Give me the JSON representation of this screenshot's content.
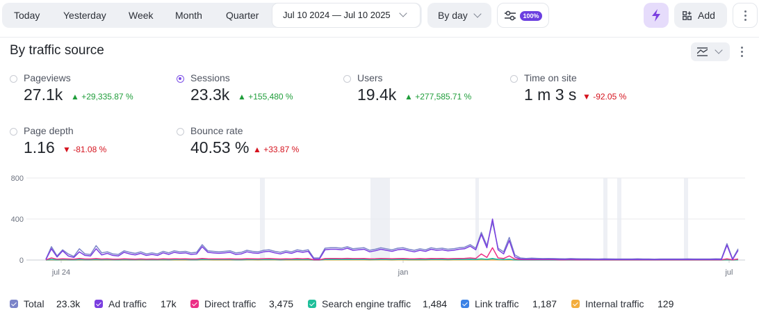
{
  "toolbar": {
    "periods": [
      "Today",
      "Yesterday",
      "Week",
      "Month",
      "Quarter"
    ],
    "date_range": "Jul 10 2024 — Jul 10 2025",
    "grouping": "By day",
    "sampling_badge": "100%",
    "add_label": "Add",
    "icons": {
      "sampling": "sliders-icon",
      "lightning": "lightning-icon",
      "add": "widgets-icon",
      "more": "kebab-icon"
    }
  },
  "report": {
    "title": "By traffic source",
    "chart_settings_icon": "chart-settings-icon"
  },
  "metrics": [
    {
      "label": "Pageviews",
      "value": "27.1k",
      "delta": "▲ +29,335.87 %",
      "trend": "up",
      "selected": false
    },
    {
      "label": "Sessions",
      "value": "23.3k",
      "delta": "▲ +155,480 %",
      "trend": "up",
      "selected": true
    },
    {
      "label": "Users",
      "value": "19.4k",
      "delta": "▲ +277,585.71 %",
      "trend": "up",
      "selected": false
    },
    {
      "label": "Time on site",
      "value": "1 m 3 s",
      "delta": "▼ -92.05 %",
      "trend": "down",
      "selected": false
    },
    {
      "label": "Page depth",
      "value": "1.16",
      "delta": "▼ -81.08 %",
      "trend": "down",
      "selected": false
    },
    {
      "label": "Bounce rate",
      "value": "40.53 %",
      "delta": "▲ +33.87 %",
      "trend": "down",
      "selected": false
    }
  ],
  "legend": [
    {
      "name": "Total",
      "value": "23.3k",
      "color": "#7b84c9"
    },
    {
      "name": "Ad traffic",
      "value": "17k",
      "color": "#7a3ee0"
    },
    {
      "name": "Direct traffic",
      "value": "3,475",
      "color": "#ec2f86"
    },
    {
      "name": "Search engine traffic",
      "value": "1,484",
      "color": "#1fbf9a"
    },
    {
      "name": "Link traffic",
      "value": "1,187",
      "color": "#3b82e6"
    },
    {
      "name": "Internal traffic",
      "value": "129",
      "color": "#f3ad3d"
    }
  ],
  "chart_data": {
    "type": "line",
    "y_ticks": [
      800,
      400,
      0
    ],
    "ylim": [
      0,
      800
    ],
    "x_ticks": [
      "jul 24",
      "jan",
      "jul"
    ],
    "grid": true,
    "series": [
      {
        "name": "Total",
        "color": "#7b84c9",
        "values": [
          8,
          130,
          40,
          100,
          60,
          35,
          110,
          60,
          55,
          140,
          70,
          80,
          60,
          55,
          90,
          75,
          65,
          80,
          60,
          70,
          60,
          85,
          70,
          90,
          80,
          85,
          70,
          75,
          150,
          90,
          85,
          80,
          85,
          90,
          70,
          75,
          95,
          85,
          80,
          95,
          100,
          85,
          75,
          90,
          80,
          100,
          90,
          100,
          20,
          20,
          115,
          120,
          120,
          115,
          130,
          110,
          115,
          120,
          95,
          105,
          120,
          110,
          100,
          115,
          120,
          105,
          95,
          110,
          100,
          120,
          110,
          115,
          105,
          110,
          120,
          125,
          150,
          115,
          270,
          140,
          370,
          115,
          80,
          220,
          50,
          20,
          15,
          18,
          16,
          14,
          15,
          14,
          13,
          12,
          14,
          13,
          12,
          12,
          11,
          10,
          12,
          11,
          10,
          10,
          10,
          10,
          12,
          10,
          10,
          9,
          10,
          10,
          10,
          10,
          10,
          11,
          10,
          10,
          10,
          10,
          12,
          11,
          160,
          10,
          110
        ]
      },
      {
        "name": "Ad traffic",
        "color": "#7a3ee0",
        "values": [
          5,
          110,
          30,
          90,
          40,
          25,
          80,
          45,
          40,
          110,
          50,
          65,
          45,
          40,
          75,
          60,
          50,
          65,
          45,
          55,
          45,
          70,
          55,
          75,
          65,
          70,
          55,
          60,
          130,
          75,
          70,
          65,
          70,
          75,
          55,
          60,
          80,
          70,
          65,
          80,
          85,
          70,
          60,
          75,
          65,
          85,
          75,
          85,
          10,
          10,
          100,
          105,
          105,
          100,
          115,
          95,
          100,
          105,
          80,
          90,
          105,
          95,
          85,
          100,
          105,
          90,
          80,
          95,
          85,
          105,
          95,
          100,
          90,
          95,
          105,
          110,
          135,
          100,
          250,
          120,
          400,
          100,
          60,
          190,
          30,
          10,
          8,
          10,
          9,
          8,
          9,
          8,
          7,
          6,
          8,
          7,
          6,
          6,
          5,
          5,
          6,
          5,
          5,
          5,
          5,
          5,
          6,
          5,
          5,
          4,
          5,
          5,
          5,
          5,
          5,
          6,
          5,
          5,
          5,
          5,
          6,
          5,
          145,
          5,
          95
        ]
      },
      {
        "name": "Direct traffic",
        "color": "#ec2f86",
        "values": [
          2,
          20,
          8,
          12,
          10,
          8,
          15,
          10,
          10,
          14,
          10,
          12,
          9,
          8,
          12,
          10,
          9,
          11,
          9,
          10,
          9,
          12,
          10,
          12,
          11,
          12,
          10,
          10,
          15,
          12,
          11,
          11,
          11,
          12,
          10,
          10,
          13,
          12,
          11,
          13,
          14,
          12,
          10,
          12,
          11,
          14,
          12,
          14,
          3,
          3,
          14,
          15,
          15,
          14,
          16,
          14,
          14,
          15,
          12,
          13,
          15,
          14,
          13,
          14,
          15,
          13,
          12,
          14,
          13,
          15,
          14,
          15,
          13,
          14,
          15,
          16,
          20,
          15,
          60,
          25,
          120,
          20,
          15,
          40,
          10,
          5,
          4,
          5,
          4,
          4,
          4,
          4,
          3,
          3,
          4,
          3,
          3,
          3,
          3,
          3,
          3,
          3,
          3,
          3,
          3,
          3,
          3,
          3,
          3,
          3,
          3,
          3,
          3,
          3,
          3,
          3,
          3,
          3,
          3,
          3,
          3,
          3,
          12,
          3,
          10
        ]
      },
      {
        "name": "Search engine traffic",
        "color": "#1fbf9a",
        "values": [
          1,
          6,
          3,
          5,
          4,
          3,
          6,
          4,
          4,
          6,
          4,
          5,
          4,
          3,
          5,
          4,
          4,
          5,
          4,
          4,
          4,
          5,
          4,
          5,
          5,
          5,
          4,
          4,
          6,
          5,
          5,
          5,
          5,
          5,
          4,
          4,
          5,
          5,
          5,
          5,
          6,
          5,
          4,
          5,
          5,
          6,
          5,
          6,
          1,
          1,
          6,
          6,
          6,
          6,
          7,
          6,
          6,
          6,
          5,
          5,
          6,
          6,
          5,
          6,
          6,
          5,
          5,
          6,
          5,
          6,
          6,
          6,
          5,
          6,
          6,
          7,
          8,
          6,
          12,
          7,
          15,
          6,
          5,
          9,
          3,
          2,
          2,
          2,
          2,
          2,
          2,
          2,
          2,
          2,
          2,
          2,
          2,
          2,
          2,
          2,
          2,
          2,
          2,
          2,
          2,
          2,
          2,
          2,
          2,
          2,
          2,
          2,
          2,
          2,
          2,
          2,
          2,
          2,
          2,
          2,
          2,
          2,
          4,
          2,
          3
        ]
      },
      {
        "name": "Link traffic",
        "color": "#3b82e6",
        "values": [
          1,
          4,
          2,
          4,
          3,
          2,
          4,
          3,
          3,
          4,
          3,
          4,
          3,
          2,
          4,
          3,
          3,
          4,
          3,
          3,
          3,
          4,
          3,
          4,
          4,
          4,
          3,
          3,
          5,
          4,
          4,
          4,
          4,
          4,
          3,
          3,
          4,
          4,
          4,
          4,
          5,
          4,
          3,
          4,
          4,
          5,
          4,
          5,
          1,
          1,
          5,
          5,
          5,
          5,
          6,
          5,
          5,
          5,
          4,
          4,
          5,
          5,
          4,
          5,
          5,
          4,
          4,
          5,
          4,
          5,
          5,
          5,
          4,
          5,
          5,
          6,
          7,
          5,
          10,
          6,
          12,
          5,
          4,
          7,
          2,
          1,
          1,
          1,
          1,
          1,
          1,
          1,
          1,
          1,
          1,
          1,
          1,
          1,
          1,
          1,
          1,
          1,
          1,
          1,
          1,
          1,
          1,
          1,
          1,
          1,
          1,
          1,
          1,
          1,
          1,
          1,
          1,
          1,
          1,
          1,
          1,
          1,
          3,
          1,
          2
        ]
      },
      {
        "name": "Internal traffic",
        "color": "#f3ad3d",
        "values": [
          0,
          1,
          0,
          1,
          0,
          0,
          1,
          0,
          0,
          1,
          0,
          1,
          0,
          0,
          1,
          0,
          0,
          1,
          0,
          0,
          0,
          1,
          0,
          1,
          0,
          1,
          0,
          0,
          1,
          1,
          0,
          1,
          0,
          1,
          0,
          0,
          1,
          1,
          0,
          1,
          1,
          1,
          0,
          1,
          0,
          1,
          0,
          1,
          0,
          0,
          1,
          1,
          1,
          1,
          1,
          1,
          1,
          1,
          0,
          1,
          1,
          1,
          0,
          1,
          1,
          0,
          0,
          1,
          0,
          1,
          1,
          1,
          0,
          1,
          1,
          1,
          1,
          1,
          2,
          1,
          2,
          1,
          0,
          1,
          0,
          0,
          0,
          0,
          0,
          0,
          0,
          0,
          0,
          0,
          0,
          0,
          0,
          0,
          0,
          0,
          0,
          0,
          0,
          0,
          0,
          0,
          0,
          0,
          0,
          0,
          0,
          0,
          0,
          0,
          0,
          0,
          0,
          0,
          0,
          0,
          0,
          0,
          1,
          0,
          1
        ]
      }
    ]
  },
  "chart_bands": [
    [
      0.3,
      0.3
    ],
    [
      0.5,
      0.5
    ],
    [
      0.7,
      0.7
    ],
    [
      0.82,
      0.82
    ],
    [
      0.86,
      0.86
    ],
    [
      0.95,
      0.95
    ]
  ]
}
